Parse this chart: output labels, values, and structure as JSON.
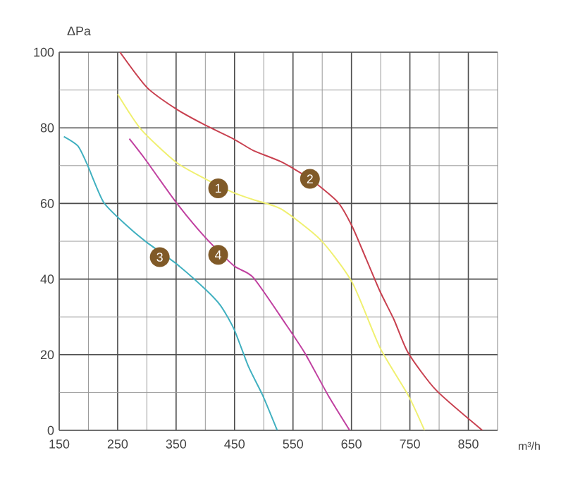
{
  "chart_data": {
    "type": "line",
    "xlabel": "m³/h",
    "ylabel": "ΔPa",
    "xlim": [
      150,
      900
    ],
    "ylim": [
      0,
      100
    ],
    "xticks": [
      150,
      250,
      350,
      450,
      550,
      650,
      750,
      850
    ],
    "yticks": [
      0,
      20,
      40,
      60,
      80,
      100
    ],
    "grid": true,
    "marker": "none",
    "line_style": "solid",
    "series": [
      {
        "color": "#f0f070",
        "x": [
          250,
          290,
          350,
          400,
          449,
          482,
          530,
          597,
          651,
          699,
          747,
          775
        ],
        "values": [
          88.9,
          79.6,
          70.9,
          66.5,
          62.8,
          61,
          58.5,
          50.4,
          39.2,
          21.8,
          9.3,
          0
        ]
      },
      {
        "color": "#c8404f",
        "x": [
          254,
          300,
          350,
          400,
          449,
          482,
          530,
          579,
          627,
          651,
          675,
          699,
          723,
          747,
          795,
          874
        ],
        "values": [
          100,
          90.7,
          85,
          80.7,
          77,
          74,
          71,
          66.5,
          60.3,
          54,
          45.4,
          36.7,
          29.2,
          20.5,
          10.6,
          0
        ]
      },
      {
        "color": "#40b0c0",
        "x": [
          158,
          182,
          198,
          226,
          266,
          300,
          350,
          400,
          426,
          449,
          474,
          498,
          523
        ],
        "values": [
          77.7,
          75.2,
          70.3,
          60.3,
          54.1,
          49.7,
          44.1,
          37.3,
          33,
          26.8,
          16.8,
          9.3,
          0
        ]
      },
      {
        "color": "#c040a0",
        "x": [
          270,
          298,
          350,
          400,
          449,
          482,
          538,
          570,
          610,
          647
        ],
        "values": [
          77.1,
          71.5,
          60.3,
          51,
          43.5,
          40.4,
          28,
          20.5,
          9.3,
          0
        ]
      }
    ],
    "annotations": [
      {
        "text": "1",
        "x": 422,
        "y": 64
      },
      {
        "text": "2",
        "x": 579,
        "y": 66.5
      },
      {
        "text": "3",
        "x": 322,
        "y": 45.8
      },
      {
        "text": "4",
        "x": 422,
        "y": 46.4
      }
    ]
  }
}
